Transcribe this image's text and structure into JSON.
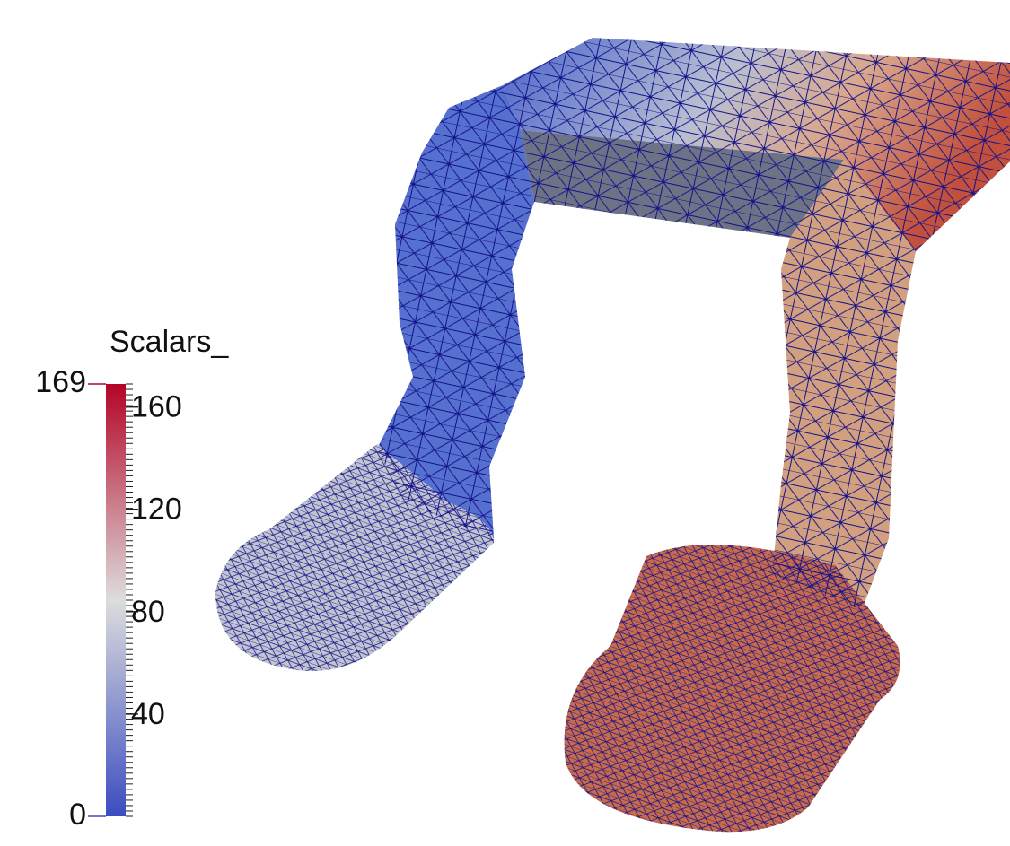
{
  "colorbar": {
    "title": "Scalars_",
    "range": [
      0,
      169
    ],
    "ticks": [
      40,
      80,
      120,
      160
    ],
    "colors": [
      "#3b4cc0",
      "#dddddd",
      "#b40426"
    ]
  }
}
